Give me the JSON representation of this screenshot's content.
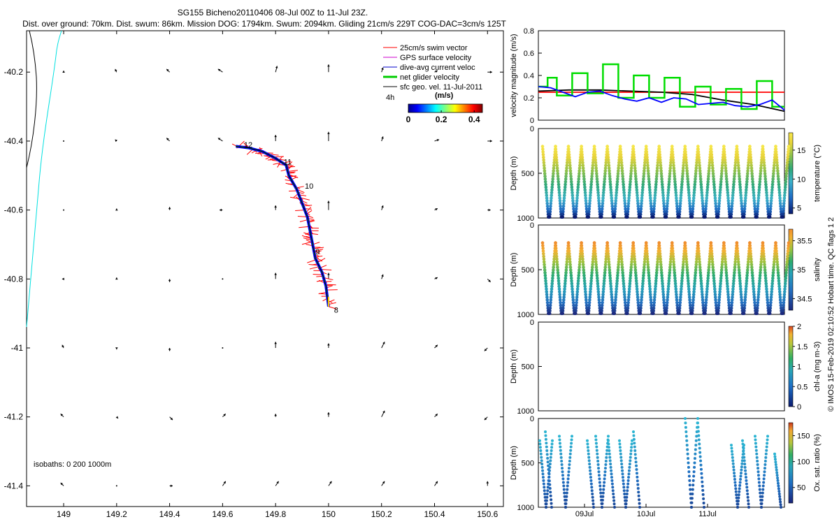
{
  "chart_data": [
    {
      "type": "map",
      "title": "SG155 Bicheno20110406 08-Jul 00Z to 11-Jul 23Z.",
      "subtitle": "Dist. over ground: 70km. Dist. swum: 86km. Mission DOG: 1794km. Swum: 2094km. Gliding 21cm/s 229T COG-DAC=3cm/s 125T",
      "x_ticks": [
        149,
        149.2,
        149.4,
        149.6,
        149.8,
        150,
        150.2,
        150.4,
        150.6
      ],
      "y_ticks": [
        -40.2,
        -40.4,
        -40.6,
        -40.8,
        -41,
        -41.2,
        -41.4
      ],
      "x_tick_labels": [
        "149",
        "149.2",
        "149.4",
        "149.6",
        "149.8",
        "150",
        "150.2",
        "150.4",
        "150.6"
      ],
      "y_tick_labels": [
        "-40.2",
        "-40.4",
        "-40.6",
        "-40.8",
        "-41",
        "-41.2",
        "-41.4"
      ],
      "xlim": [
        148.86,
        150.66
      ],
      "ylim": [
        -41.46,
        -40.08
      ],
      "legend": [
        {
          "label": "25cm/s swim vector",
          "color": "#ff0000"
        },
        {
          "label": "GPS surface velocity",
          "color": "#cc00cc"
        },
        {
          "label": "dive-avg current veloc",
          "color": "#0000cc"
        },
        {
          "label": "net glider velocity",
          "color": "#00cc00"
        },
        {
          "label": "sfc geo. vel. 11-Jul-2011",
          "color": "#000000"
        }
      ],
      "legend_extra": "4h",
      "colorbar_title": "(m/s)",
      "colorbar_ticks": [
        0,
        0.2,
        0.4
      ],
      "colorbar_tick_labels": [
        "0",
        "0.2",
        "0.4"
      ],
      "colorbar_range": [
        0,
        0.45
      ],
      "isobaths_label": "isobaths: 0   200  1000m",
      "day_labels": [
        {
          "text": "8",
          "lon": 150.01,
          "lat": -40.89
        },
        {
          "text": "9",
          "lon": 149.94,
          "lat": -40.72
        },
        {
          "text": "10",
          "lon": 149.9,
          "lat": -40.53
        },
        {
          "text": "11",
          "lon": 149.82,
          "lat": -40.46
        },
        {
          "text": "12",
          "lon": 149.67,
          "lat": -40.41
        }
      ],
      "glider_track": [
        [
          150.0,
          -40.88
        ],
        [
          149.99,
          -40.82
        ],
        [
          149.975,
          -40.78
        ],
        [
          149.95,
          -40.74
        ],
        [
          149.94,
          -40.7
        ],
        [
          149.93,
          -40.66
        ],
        [
          149.92,
          -40.62
        ],
        [
          149.9,
          -40.58
        ],
        [
          149.88,
          -40.54
        ],
        [
          149.85,
          -40.5
        ],
        [
          149.84,
          -40.47
        ],
        [
          149.8,
          -40.45
        ],
        [
          149.75,
          -40.43
        ],
        [
          149.7,
          -40.42
        ],
        [
          149.65,
          -40.415
        ]
      ],
      "sfc_geo_vectors": {
        "lon": [
          149,
          149.2,
          149.4,
          149.6,
          149.8,
          150,
          150.2,
          150.4,
          150.6
        ],
        "lat": [
          -40.2,
          -40.4,
          -40.6,
          -40.8,
          -41,
          -41.2,
          -41.4
        ],
        "u": [
          [
            0.0,
            -0.02,
            -0.04,
            -0.06,
            0.02,
            0.0,
            0.02,
            0.04,
            0.06
          ],
          [
            0.0,
            -0.02,
            -0.04,
            -0.06,
            0.0,
            0.0,
            0.02,
            0.06,
            0.06
          ],
          [
            0.0,
            0.0,
            0.0,
            -0.04,
            0.0,
            0.0,
            0.02,
            0.04,
            0.04
          ],
          [
            -0.02,
            0.0,
            0.0,
            0.0,
            0.0,
            0.0,
            0.02,
            0.04,
            0.04
          ],
          [
            -0.02,
            0.0,
            0.0,
            0.0,
            0.0,
            0.0,
            0.04,
            0.04,
            -0.04
          ],
          [
            -0.04,
            0.02,
            0.04,
            0.04,
            0.0,
            0.0,
            0.04,
            0.04,
            -0.04
          ],
          [
            -0.04,
            0.0,
            0.04,
            0.04,
            0.04,
            0.04,
            0.04,
            0.04,
            0.0
          ]
        ],
        "v": [
          [
            0.02,
            0.04,
            0.04,
            0.04,
            0.08,
            0.1,
            0.06,
            0.02,
            0.0
          ],
          [
            0.0,
            0.02,
            0.04,
            0.04,
            0.08,
            0.12,
            0.06,
            0.02,
            0.0
          ],
          [
            0.0,
            0.02,
            0.04,
            0.0,
            0.06,
            0.12,
            0.06,
            0.02,
            0.0
          ],
          [
            0.0,
            0.02,
            -0.04,
            0.0,
            0.08,
            0.08,
            0.06,
            0.02,
            -0.04
          ],
          [
            0.04,
            -0.02,
            -0.04,
            0.0,
            0.08,
            0.06,
            0.08,
            0.04,
            -0.04
          ],
          [
            0.04,
            -0.02,
            -0.04,
            0.04,
            0.04,
            0.06,
            0.08,
            0.04,
            -0.04
          ],
          [
            0.04,
            0.0,
            0.0,
            0.06,
            0.06,
            0.06,
            0.06,
            0.06,
            0.06
          ]
        ]
      }
    },
    {
      "type": "line",
      "ylabel": "velocity magnitude (m/s)",
      "ylim": [
        0,
        0.8
      ],
      "y_ticks": [
        0,
        0.2,
        0.4,
        0.6,
        0.8
      ],
      "y_tick_labels": [
        "0",
        "0.2",
        "0.4",
        "0.6",
        "0.8"
      ],
      "xlim": [
        0,
        4
      ],
      "series": [
        {
          "color": "#ff0000",
          "x": [
            0,
            4
          ],
          "y": [
            0.25,
            0.25
          ]
        },
        {
          "color": "#000000",
          "x": [
            0,
            0.5,
            1,
            1.5,
            2,
            2.5,
            3,
            3.5,
            4
          ],
          "y": [
            0.26,
            0.27,
            0.27,
            0.26,
            0.25,
            0.23,
            0.18,
            0.14,
            0.08
          ]
        },
        {
          "color": "#00dd00",
          "x": [
            0,
            0.15,
            0.15,
            0.3,
            0.3,
            0.55,
            0.55,
            0.8,
            0.8,
            1.05,
            1.05,
            1.3,
            1.3,
            1.55,
            1.55,
            1.8,
            1.8,
            2.05,
            2.05,
            2.3,
            2.3,
            2.55,
            2.55,
            2.8,
            2.8,
            3.05,
            3.05,
            3.3,
            3.3,
            3.55,
            3.55,
            3.8,
            3.8,
            4
          ],
          "y": [
            0.3,
            0.3,
            0.38,
            0.38,
            0.22,
            0.22,
            0.42,
            0.42,
            0.24,
            0.24,
            0.5,
            0.5,
            0.2,
            0.2,
            0.4,
            0.4,
            0.2,
            0.2,
            0.38,
            0.38,
            0.12,
            0.12,
            0.3,
            0.3,
            0.14,
            0.14,
            0.28,
            0.28,
            0.1,
            0.1,
            0.35,
            0.35,
            0.12,
            0.12
          ]
        },
        {
          "color": "#0000ff",
          "x": [
            0,
            0.2,
            0.4,
            0.6,
            0.8,
            1.0,
            1.2,
            1.4,
            1.6,
            1.8,
            2.0,
            2.2,
            2.4,
            2.6,
            2.8,
            3.0,
            3.2,
            3.4,
            3.6,
            3.8,
            4.0
          ],
          "y": [
            0.3,
            0.29,
            0.25,
            0.21,
            0.25,
            0.26,
            0.22,
            0.19,
            0.17,
            0.2,
            0.16,
            0.2,
            0.19,
            0.14,
            0.15,
            0.16,
            0.13,
            0.12,
            0.14,
            0.18,
            0.09
          ]
        }
      ]
    },
    {
      "type": "scatter",
      "ylabel": "Depth (m)",
      "colorbar_label": "temperature (°C)",
      "ylim": [
        0,
        1000
      ],
      "y_ticks": [
        0,
        500,
        1000
      ],
      "y_tick_labels": [
        "0",
        "500",
        "1000"
      ],
      "colorbar_ticks": [
        5,
        10,
        15
      ],
      "colorbar_range": [
        4,
        18
      ],
      "dives": 19
    },
    {
      "type": "scatter",
      "ylabel": "Depth (m)",
      "colorbar_label": "salinity",
      "ylim": [
        0,
        1000
      ],
      "y_ticks": [
        0,
        500,
        1000
      ],
      "y_tick_labels": [
        "0",
        "500",
        "1000"
      ],
      "colorbar_ticks": [
        34.5,
        35,
        35.5
      ],
      "colorbar_range": [
        34.3,
        35.7
      ],
      "dives": 19
    },
    {
      "type": "scatter",
      "ylabel": "Depth (m)",
      "colorbar_label": "chl-a (mg m-3)",
      "ylim": [
        0,
        1000
      ],
      "y_ticks": [
        0,
        500,
        1000
      ],
      "y_tick_labels": [
        "0",
        "500",
        "1000"
      ],
      "colorbar_ticks": [
        0,
        0.5,
        1,
        1.5,
        2
      ],
      "colorbar_tick_labels": [
        "0",
        "0.5",
        "1",
        "1.5",
        "2"
      ],
      "colorbar_range": [
        0,
        2
      ]
    },
    {
      "type": "scatter",
      "ylabel": "Depth (m)",
      "colorbar_label": "Ox. sat. ratio (%)",
      "ylim": [
        0,
        1000
      ],
      "y_ticks": [
        0,
        500,
        1000
      ],
      "y_tick_labels": [
        "0",
        "500",
        "1000"
      ],
      "colorbar_ticks": [
        50,
        100,
        150
      ],
      "colorbar_range": [
        20,
        175
      ],
      "x_tick_labels": [
        "09Jul",
        "10Jul",
        "11Jul"
      ],
      "x_ticks": [
        1,
        2,
        3
      ],
      "xlim": [
        0,
        4
      ]
    }
  ],
  "footer": "© IMOS 15-Feb-2019 02:10:52 Hobart time. QC flags 1  2"
}
